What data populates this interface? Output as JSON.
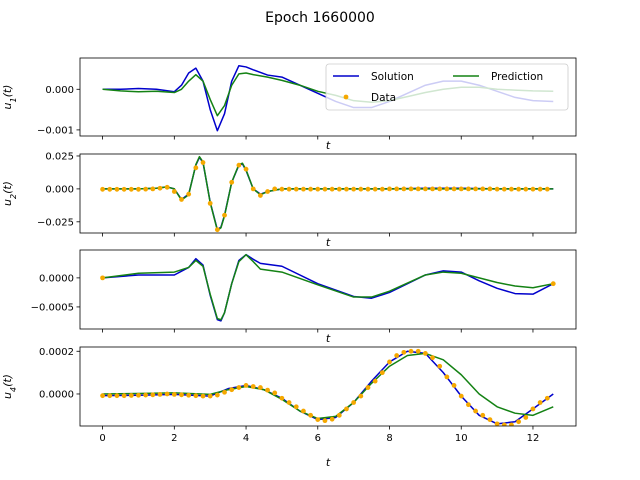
{
  "figure": {
    "title": "Epoch 1660000"
  },
  "colors": {
    "solution": "#0000cc",
    "prediction": "#148214",
    "data": "#f5a800"
  },
  "legend": {
    "solution_label": "Solution",
    "prediction_label": "Prediction",
    "data_label": "Data",
    "placement": "upper-right of first panel"
  },
  "chart_data": [
    {
      "type": "line",
      "ylabel": "u_1(t)",
      "xlabel": "t",
      "xlim": [
        -0.63,
        13.2
      ],
      "ylim": [
        -0.00115,
        0.00077
      ],
      "x_ticks": [
        0,
        2,
        4,
        6,
        8,
        10,
        12
      ],
      "y_ticks": [
        0.0,
        -0.001
      ],
      "y_tick_labels": [
        "0.000",
        "−0.001"
      ],
      "show_x_tick_labels": false,
      "has_data_points": false,
      "series": [
        {
          "name": "Solution",
          "x": [
            0,
            0.5,
            1.0,
            1.5,
            2.0,
            2.2,
            2.4,
            2.6,
            2.8,
            3.0,
            3.2,
            3.4,
            3.6,
            3.8,
            4.0,
            4.2,
            4.6,
            5.0,
            5.5,
            6.0,
            6.5,
            7.0,
            7.5,
            8.0,
            8.5,
            9.0,
            9.5,
            10.0,
            10.5,
            11.0,
            11.5,
            12.0,
            12.566
          ],
          "y": [
            0.0,
            0.0,
            2e-05,
            0.0,
            -6e-05,
            0.0001,
            0.0004,
            0.00052,
            0.0002,
            -0.0005,
            -0.00102,
            -0.0006,
            0.0002,
            0.00058,
            0.00055,
            0.00048,
            0.00035,
            0.0003,
            0.0001,
            -0.0001,
            -0.0003,
            -0.00045,
            -0.00045,
            -0.0003,
            -0.0001,
            0.0001,
            0.0002,
            0.0002,
            0.0001,
            -5e-05,
            -0.0002,
            -0.00028,
            -0.0003
          ]
        },
        {
          "name": "Prediction",
          "x": [
            0,
            0.5,
            1.0,
            1.5,
            2.0,
            2.2,
            2.4,
            2.6,
            2.8,
            3.0,
            3.2,
            3.4,
            3.6,
            3.8,
            4.0,
            4.2,
            4.6,
            5.0,
            5.5,
            6.0,
            6.5,
            7.0,
            7.5,
            8.0,
            8.5,
            9.0,
            9.5,
            10.0,
            10.5,
            11.0,
            11.5,
            12.0,
            12.566
          ],
          "y": [
            0.0,
            -4e-05,
            -6e-05,
            -5e-05,
            -8e-05,
            0.0,
            0.0002,
            0.00036,
            0.0002,
            -0.00025,
            -0.00065,
            -0.0004,
            0.0001,
            0.00038,
            0.0004,
            0.00036,
            0.0003,
            0.00022,
            0.0001,
            -5e-05,
            -0.00015,
            -0.00028,
            -0.00032,
            -0.00028,
            -0.00018,
            -8e-05,
            0.0,
            5e-05,
            5e-05,
            0.0,
            -2e-05,
            -4e-05,
            -5e-05
          ]
        }
      ]
    },
    {
      "type": "line",
      "ylabel": "u_2(t)",
      "xlabel": "t",
      "xlim": [
        -0.63,
        13.2
      ],
      "ylim": [
        -0.0335,
        0.0265
      ],
      "x_ticks": [
        0,
        2,
        4,
        6,
        8,
        10,
        12
      ],
      "y_ticks": [
        0.025,
        0.0,
        -0.025
      ],
      "y_tick_labels": [
        "0.025",
        "0.000",
        "−0.025"
      ],
      "show_x_tick_labels": false,
      "has_data_points": true,
      "series": [
        {
          "name": "Solution",
          "x": [
            0,
            1.0,
            1.5,
            1.8,
            2.0,
            2.2,
            2.4,
            2.6,
            2.7,
            2.8,
            3.0,
            3.2,
            3.3,
            3.4,
            3.6,
            3.8,
            3.9,
            4.0,
            4.2,
            4.4,
            4.6,
            5.0,
            6.0,
            7.0,
            8.0,
            9.0,
            10.0,
            11.0,
            12.0,
            12.566
          ],
          "y": [
            0.0,
            0.0,
            0.0005,
            0.0015,
            0.0,
            -0.008,
            -0.004,
            0.018,
            0.024,
            0.02,
            -0.01,
            -0.031,
            -0.029,
            -0.02,
            0.005,
            0.018,
            0.019,
            0.014,
            0.0,
            -0.004,
            -0.002,
            0.0,
            0.0,
            0.0,
            0.0,
            0.0005,
            0.0005,
            0.0,
            0.0,
            0.0
          ]
        },
        {
          "name": "Prediction",
          "x": [
            0,
            1.0,
            1.5,
            1.8,
            2.0,
            2.2,
            2.4,
            2.6,
            2.7,
            2.8,
            3.0,
            3.2,
            3.3,
            3.4,
            3.6,
            3.8,
            3.9,
            4.0,
            4.2,
            4.4,
            4.6,
            5.0,
            6.0,
            7.0,
            8.0,
            9.0,
            10.0,
            11.0,
            12.0,
            12.566
          ],
          "y": [
            0.0,
            0.0,
            0.0005,
            0.0015,
            0.0,
            -0.0085,
            -0.0045,
            0.0185,
            0.0245,
            0.0205,
            -0.0105,
            -0.0315,
            -0.0295,
            -0.0205,
            0.005,
            0.0185,
            0.0195,
            0.0145,
            0.0,
            -0.0045,
            -0.002,
            0.0,
            0.0,
            0.0,
            0.0,
            0.0,
            0.0,
            0.0,
            0.0,
            0.0
          ]
        },
        {
          "name": "Data",
          "x": [
            0.0,
            0.2,
            0.4,
            0.6,
            0.8,
            1.0,
            1.2,
            1.4,
            1.6,
            1.8,
            2.0,
            2.2,
            2.4,
            2.6,
            2.8,
            3.0,
            3.2,
            3.4,
            3.6,
            3.8,
            4.0,
            4.2,
            4.4,
            4.6,
            4.8,
            5.0,
            5.2,
            5.4,
            5.6,
            5.8,
            6.0,
            6.2,
            6.4,
            6.6,
            6.8,
            7.0,
            7.2,
            7.4,
            7.6,
            7.8,
            8.0,
            8.2,
            8.4,
            8.6,
            8.8,
            9.0,
            9.2,
            9.4,
            9.6,
            9.8,
            10.0,
            10.2,
            10.4,
            10.6,
            10.8,
            11.0,
            11.2,
            11.4,
            11.6,
            11.8,
            12.0,
            12.2,
            12.4
          ],
          "y": [
            -0.0003,
            -0.0003,
            -0.0003,
            -0.0003,
            -0.0003,
            -0.0003,
            -0.0002,
            0.0,
            0.0005,
            0.0012,
            -0.002,
            -0.008,
            -0.004,
            0.016,
            0.02,
            -0.011,
            -0.031,
            -0.02,
            0.005,
            0.018,
            0.015,
            0.0,
            -0.005,
            -0.002,
            0.0,
            -0.0002,
            -0.0002,
            -0.0002,
            -0.0002,
            -0.0002,
            -0.0002,
            -0.0002,
            -0.0002,
            -0.0002,
            -0.0002,
            -0.0002,
            -0.0002,
            -0.0002,
            -0.0002,
            -0.0002,
            0.0,
            0.0,
            0.0,
            0.0,
            0.0,
            0.0,
            0.0,
            0.0,
            0.0,
            0.0,
            0.0,
            0.0,
            0.0,
            0.0,
            0.0,
            -0.0002,
            -0.0002,
            -0.0002,
            -0.0002,
            -0.0002,
            -0.0002,
            -0.0002,
            -0.0002
          ]
        }
      ]
    },
    {
      "type": "line",
      "ylabel": "",
      "xlabel": "t",
      "xlim": [
        -0.63,
        13.2
      ],
      "ylim": [
        -0.00088,
        0.00048
      ],
      "x_ticks": [
        0,
        2,
        4,
        6,
        8,
        10,
        12
      ],
      "y_ticks": [
        0.0,
        -0.0005
      ],
      "y_tick_labels": [
        "0.0000",
        "−0.0005"
      ],
      "show_x_tick_labels": false,
      "has_data_points": true,
      "series": [
        {
          "name": "Solution",
          "x": [
            0,
            1.0,
            2.0,
            2.4,
            2.6,
            2.8,
            3.0,
            3.2,
            3.3,
            3.4,
            3.6,
            3.8,
            4.0,
            4.2,
            4.4,
            5.0,
            6.0,
            7.0,
            7.5,
            8.0,
            9.0,
            9.5,
            10.0,
            10.5,
            11.0,
            11.5,
            12.0,
            12.566
          ],
          "y": [
            0.0,
            5e-05,
            5e-05,
            0.00018,
            0.00033,
            0.00022,
            -0.0003,
            -0.00072,
            -0.00074,
            -0.0006,
            -0.0001,
            0.0003,
            0.0004,
            0.00032,
            0.00025,
            0.0002,
            -0.0001,
            -0.00032,
            -0.00035,
            -0.00025,
            5e-05,
            0.00012,
            0.0001,
            -5e-05,
            -0.00018,
            -0.00027,
            -0.00028,
            -0.0001
          ]
        },
        {
          "name": "Prediction",
          "x": [
            0,
            1.0,
            2.0,
            2.4,
            2.6,
            2.8,
            3.0,
            3.2,
            3.3,
            3.4,
            3.6,
            3.8,
            4.0,
            4.2,
            4.4,
            5.0,
            6.0,
            7.0,
            7.5,
            8.0,
            9.0,
            9.5,
            10.0,
            10.5,
            11.0,
            11.5,
            12.0,
            12.566
          ],
          "y": [
            0.0,
            8e-05,
            0.0001,
            0.00018,
            0.0003,
            0.0002,
            -0.00028,
            -0.0007,
            -0.00072,
            -0.0006,
            -0.0001,
            0.00028,
            0.0004,
            0.00028,
            0.00015,
            0.0001,
            -0.00012,
            -0.00033,
            -0.00033,
            -0.00023,
            5e-05,
            0.0001,
            8e-05,
            0.0,
            -8e-05,
            -0.00014,
            -0.00017,
            -0.0001
          ]
        },
        {
          "name": "Data",
          "x": [
            0.0,
            12.566
          ],
          "y": [
            0.0,
            -0.0001
          ]
        }
      ]
    },
    {
      "type": "line",
      "ylabel": "u_4(t)",
      "xlabel": "t",
      "xlim": [
        -0.63,
        13.2
      ],
      "ylim": [
        -0.00015,
        0.00022
      ],
      "x_ticks": [
        0,
        2,
        4,
        6,
        8,
        10,
        12
      ],
      "x_tick_labels": [
        "0",
        "2",
        "4",
        "6",
        "8",
        "10",
        "12"
      ],
      "y_ticks": [
        0.0002,
        0.0
      ],
      "y_tick_labels": [
        "0.0002",
        "0.0000"
      ],
      "show_x_tick_labels": true,
      "has_data_points": true,
      "series": [
        {
          "name": "Solution",
          "x": [
            0,
            1.0,
            2.0,
            3.0,
            3.5,
            4.0,
            4.5,
            5.0,
            5.5,
            6.0,
            6.5,
            7.0,
            7.5,
            8.0,
            8.5,
            9.0,
            9.5,
            10.0,
            10.5,
            11.0,
            11.5,
            12.0,
            12.566
          ],
          "y": [
            -8e-06,
            -6e-06,
            -2e-06,
            -1e-05,
            2.5e-05,
            4e-05,
            2e-05,
            -2e-05,
            -8e-05,
            -0.00012,
            -0.00011,
            -4e-05,
            6e-05,
            0.00015,
            0.0002,
            0.00019,
            0.0001,
            -1e-05,
            -0.0001,
            -0.00014,
            -0.00013,
            -7e-05,
            0.0
          ]
        },
        {
          "name": "Prediction",
          "x": [
            0,
            1.0,
            2.0,
            3.0,
            3.5,
            4.0,
            4.5,
            5.0,
            5.5,
            6.0,
            6.5,
            7.0,
            7.5,
            8.0,
            8.5,
            9.0,
            9.5,
            10.0,
            10.5,
            11.0,
            11.5,
            12.0,
            12.566
          ],
          "y": [
            0.0,
            2e-06,
            5e-06,
            -2e-06,
            2e-05,
            3.5e-05,
            2e-05,
            -2.5e-05,
            -8e-05,
            -0.000115,
            -0.000105,
            -4e-05,
            5e-05,
            0.00013,
            0.00018,
            0.00019,
            0.00016,
            9e-05,
            0.0,
            -6e-05,
            -9e-05,
            -0.0001,
            -6e-05
          ]
        },
        {
          "name": "Data",
          "x": [
            0.0,
            0.2,
            0.4,
            0.6,
            0.8,
            1.0,
            1.2,
            1.4,
            1.6,
            1.8,
            2.0,
            2.2,
            2.4,
            2.6,
            2.8,
            3.0,
            3.2,
            3.4,
            3.6,
            3.8,
            4.0,
            4.2,
            4.4,
            4.6,
            4.8,
            5.0,
            5.2,
            5.4,
            5.6,
            5.8,
            6.0,
            6.2,
            6.4,
            6.6,
            6.8,
            7.0,
            7.2,
            7.4,
            7.6,
            7.8,
            8.0,
            8.2,
            8.4,
            8.6,
            8.8,
            9.0,
            9.2,
            9.4,
            9.6,
            9.8,
            10.0,
            10.2,
            10.4,
            10.6,
            10.8,
            11.0,
            11.2,
            11.4,
            11.6,
            11.8,
            12.0,
            12.2,
            12.4
          ],
          "y": [
            -8e-06,
            -8e-06,
            -8e-06,
            -8e-06,
            -7e-06,
            -6e-06,
            -5e-06,
            -4e-06,
            -2e-06,
            0.0,
            -2e-06,
            -4e-06,
            -6e-06,
            -8e-06,
            -1e-05,
            -1e-05,
            -5e-06,
            8e-06,
            2e-05,
            3e-05,
            4e-05,
            3.5e-05,
            3e-05,
            1.8e-05,
            5e-06,
            -2e-05,
            -4e-05,
            -6e-05,
            -8e-05,
            -0.0001,
            -0.00012,
            -0.000125,
            -0.000118,
            -0.0001,
            -7e-05,
            -4e-05,
            -1e-05,
            3e-05,
            6e-05,
            0.0001,
            0.00015,
            0.00018,
            0.000195,
            0.0002,
            0.0002,
            0.00019,
            0.00017,
            0.00013,
            8e-05,
            4e-05,
            -1e-05,
            -5e-05,
            -8e-05,
            -0.0001,
            -0.00012,
            -0.00014,
            -0.000145,
            -0.000145,
            -0.00013,
            -0.00011,
            -7e-05,
            -4e-05,
            -2e-05
          ]
        }
      ]
    }
  ]
}
